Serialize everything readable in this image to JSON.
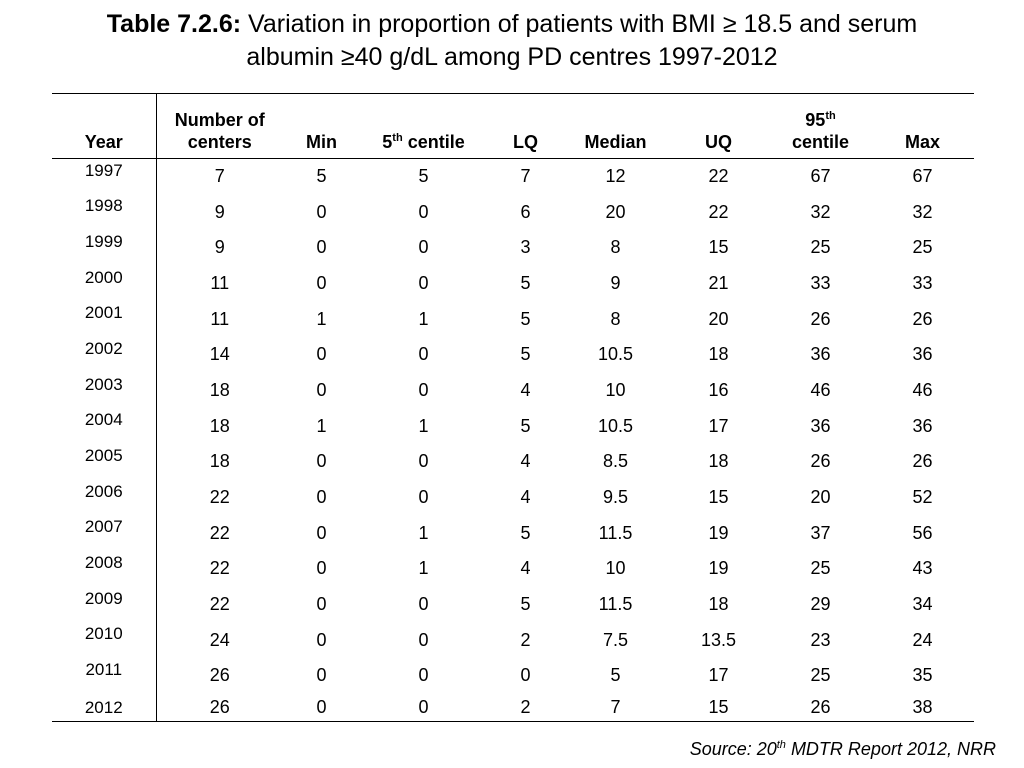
{
  "title": {
    "label": "Table 7.2.6:",
    "line1": " Variation in proportion of patients with BMI ≥ 18.5 and serum",
    "line2": "albumin ≥40 g/dL among PD centres 1997-2012"
  },
  "table": {
    "headers": {
      "year": "Year",
      "centers_line1": "Number of",
      "centers_line2": "centers",
      "min": "Min",
      "p5_num": "5",
      "p5_sup": "th",
      "p5_text": " centile",
      "lq": "LQ",
      "median": "Median",
      "uq": "UQ",
      "p95_num": "95",
      "p95_sup": "th",
      "p95_text": "centile",
      "max": "Max"
    },
    "rows": [
      {
        "year": "1997",
        "centers": "7",
        "min": "5",
        "p5": "5",
        "lq": "7",
        "median": "12",
        "uq": "22",
        "p95": "67",
        "max": "67"
      },
      {
        "year": "1998",
        "centers": "9",
        "min": "0",
        "p5": "0",
        "lq": "6",
        "median": "20",
        "uq": "22",
        "p95": "32",
        "max": "32"
      },
      {
        "year": "1999",
        "centers": "9",
        "min": "0",
        "p5": "0",
        "lq": "3",
        "median": "8",
        "uq": "15",
        "p95": "25",
        "max": "25"
      },
      {
        "year": "2000",
        "centers": "11",
        "min": "0",
        "p5": "0",
        "lq": "5",
        "median": "9",
        "uq": "21",
        "p95": "33",
        "max": "33"
      },
      {
        "year": "2001",
        "centers": "11",
        "min": "1",
        "p5": "1",
        "lq": "5",
        "median": "8",
        "uq": "20",
        "p95": "26",
        "max": "26"
      },
      {
        "year": "2002",
        "centers": "14",
        "min": "0",
        "p5": "0",
        "lq": "5",
        "median": "10.5",
        "uq": "18",
        "p95": "36",
        "max": "36"
      },
      {
        "year": "2003",
        "centers": "18",
        "min": "0",
        "p5": "0",
        "lq": "4",
        "median": "10",
        "uq": "16",
        "p95": "46",
        "max": "46"
      },
      {
        "year": "2004",
        "centers": "18",
        "min": "1",
        "p5": "1",
        "lq": "5",
        "median": "10.5",
        "uq": "17",
        "p95": "36",
        "max": "36"
      },
      {
        "year": "2005",
        "centers": "18",
        "min": "0",
        "p5": "0",
        "lq": "4",
        "median": "8.5",
        "uq": "18",
        "p95": "26",
        "max": "26"
      },
      {
        "year": "2006",
        "centers": "22",
        "min": "0",
        "p5": "0",
        "lq": "4",
        "median": "9.5",
        "uq": "15",
        "p95": "20",
        "max": "52"
      },
      {
        "year": "2007",
        "centers": "22",
        "min": "0",
        "p5": "1",
        "lq": "5",
        "median": "11.5",
        "uq": "19",
        "p95": "37",
        "max": "56"
      },
      {
        "year": "2008",
        "centers": "22",
        "min": "0",
        "p5": "1",
        "lq": "4",
        "median": "10",
        "uq": "19",
        "p95": "25",
        "max": "43"
      },
      {
        "year": "2009",
        "centers": "22",
        "min": "0",
        "p5": "0",
        "lq": "5",
        "median": "11.5",
        "uq": "18",
        "p95": "29",
        "max": "34"
      },
      {
        "year": "2010",
        "centers": "24",
        "min": "0",
        "p5": "0",
        "lq": "2",
        "median": "7.5",
        "uq": "13.5",
        "p95": "23",
        "max": "24"
      },
      {
        "year": "2011",
        "centers": "26",
        "min": "0",
        "p5": "0",
        "lq": "0",
        "median": "5",
        "uq": "17",
        "p95": "25",
        "max": "35"
      },
      {
        "year": "2012",
        "centers": "26",
        "min": "0",
        "p5": "0",
        "lq": "2",
        "median": "7",
        "uq": "15",
        "p95": "26",
        "max": "38"
      }
    ]
  },
  "source": {
    "prefix": "Source: 20",
    "sup": "th",
    "suffix": " MDTR Report 2012, NRR"
  }
}
